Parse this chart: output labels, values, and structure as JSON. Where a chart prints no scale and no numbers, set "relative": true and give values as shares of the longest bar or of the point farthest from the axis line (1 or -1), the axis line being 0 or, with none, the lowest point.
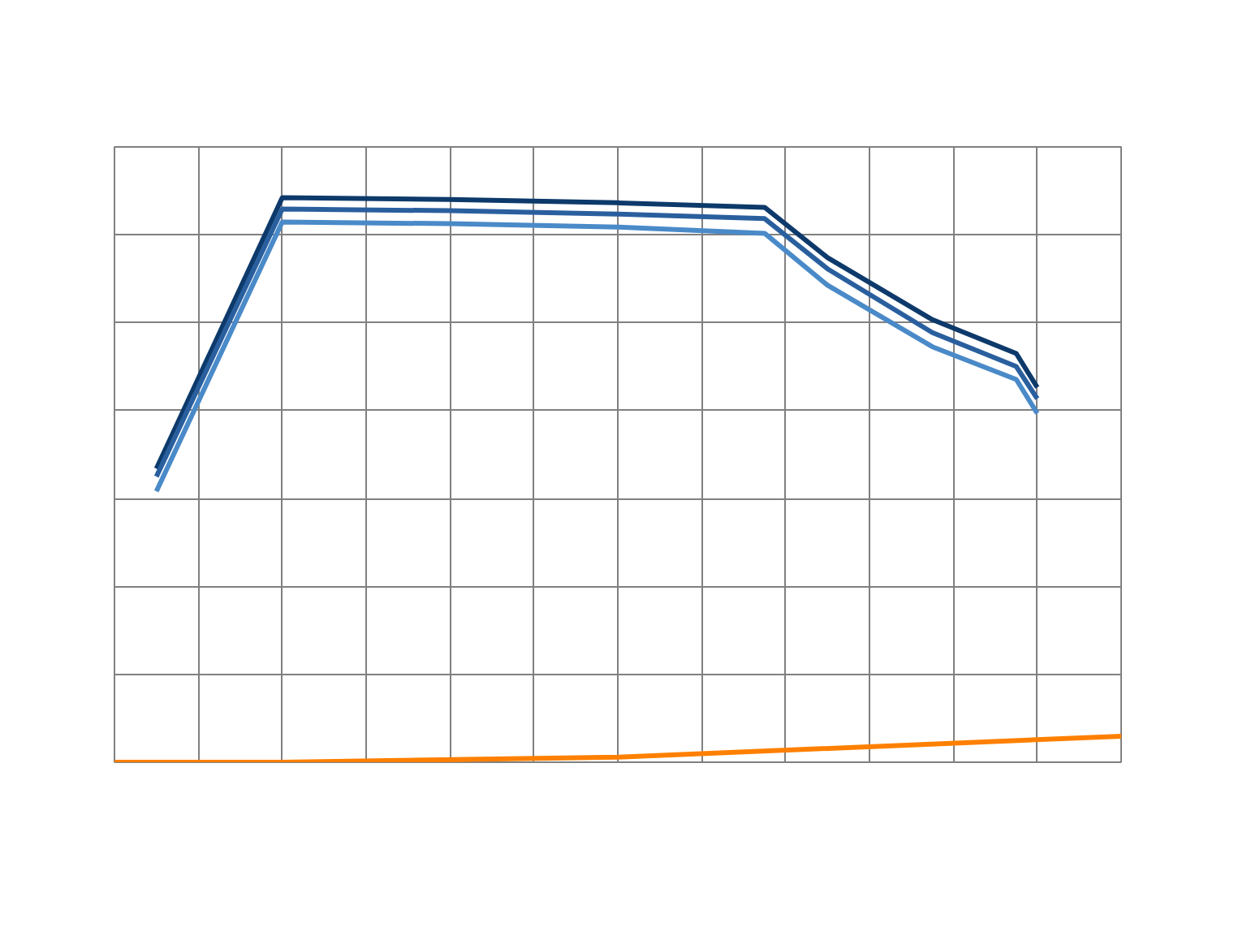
{
  "chart_data": {
    "type": "line",
    "relative": true,
    "grid": true,
    "marker": "none",
    "line_style": "solid",
    "categories": [
      null,
      null,
      null,
      null,
      null,
      null,
      null,
      null,
      null,
      null,
      null,
      null,
      null,
      null,
      null,
      null,
      null,
      null,
      null,
      null,
      null,
      null,
      null,
      null,
      null,
      null,
      null,
      null,
      null,
      null,
      null,
      null,
      null,
      null,
      null,
      null,
      null,
      null,
      null,
      null,
      null,
      null,
      null,
      null,
      null,
      null,
      null,
      null,
      null
    ],
    "series": [
      {
        "color": "#0d3a6b",
        "values": [
          null,
          null,
          0.52,
          null,
          null,
          null,
          null,
          null,
          1.0,
          null,
          null,
          null,
          null,
          null,
          null,
          null,
          0.997,
          null,
          null,
          null,
          null,
          null,
          null,
          null,
          0.991,
          null,
          null,
          null,
          null,
          null,
          null,
          0.983,
          null,
          null,
          0.894,
          null,
          null,
          null,
          null,
          0.784,
          null,
          null,
          null,
          0.724,
          0.664,
          null,
          null,
          null,
          null
        ]
      },
      {
        "color": "#2a5f9e",
        "values": [
          null,
          null,
          0.506,
          null,
          null,
          null,
          null,
          null,
          0.98,
          null,
          null,
          null,
          null,
          null,
          null,
          null,
          0.977,
          null,
          null,
          null,
          null,
          null,
          null,
          null,
          0.971,
          null,
          null,
          null,
          null,
          null,
          null,
          0.963,
          null,
          null,
          0.874,
          null,
          null,
          null,
          null,
          0.761,
          null,
          null,
          null,
          0.701,
          0.644,
          null,
          null,
          null,
          null
        ]
      },
      {
        "color": "#4a8ac8",
        "values": [
          null,
          null,
          0.48,
          null,
          null,
          null,
          null,
          null,
          0.957,
          null,
          null,
          null,
          null,
          null,
          null,
          null,
          0.954,
          null,
          null,
          null,
          null,
          null,
          null,
          null,
          0.948,
          null,
          null,
          null,
          null,
          null,
          null,
          0.937,
          null,
          null,
          0.845,
          null,
          null,
          null,
          null,
          0.736,
          null,
          null,
          null,
          0.678,
          0.618,
          null,
          null,
          null,
          null
        ]
      },
      {
        "color": "#ff8000",
        "values": [
          0,
          null,
          null,
          null,
          null,
          null,
          null,
          null,
          0,
          null,
          null,
          null,
          null,
          null,
          null,
          null,
          null,
          null,
          null,
          null,
          null,
          null,
          null,
          null,
          0.009,
          null,
          null,
          null,
          null,
          null,
          null,
          null,
          null,
          null,
          null,
          null,
          null,
          null,
          null,
          null,
          null,
          null,
          null,
          null,
          null,
          null,
          null,
          null,
          0.046
        ]
      }
    ]
  }
}
